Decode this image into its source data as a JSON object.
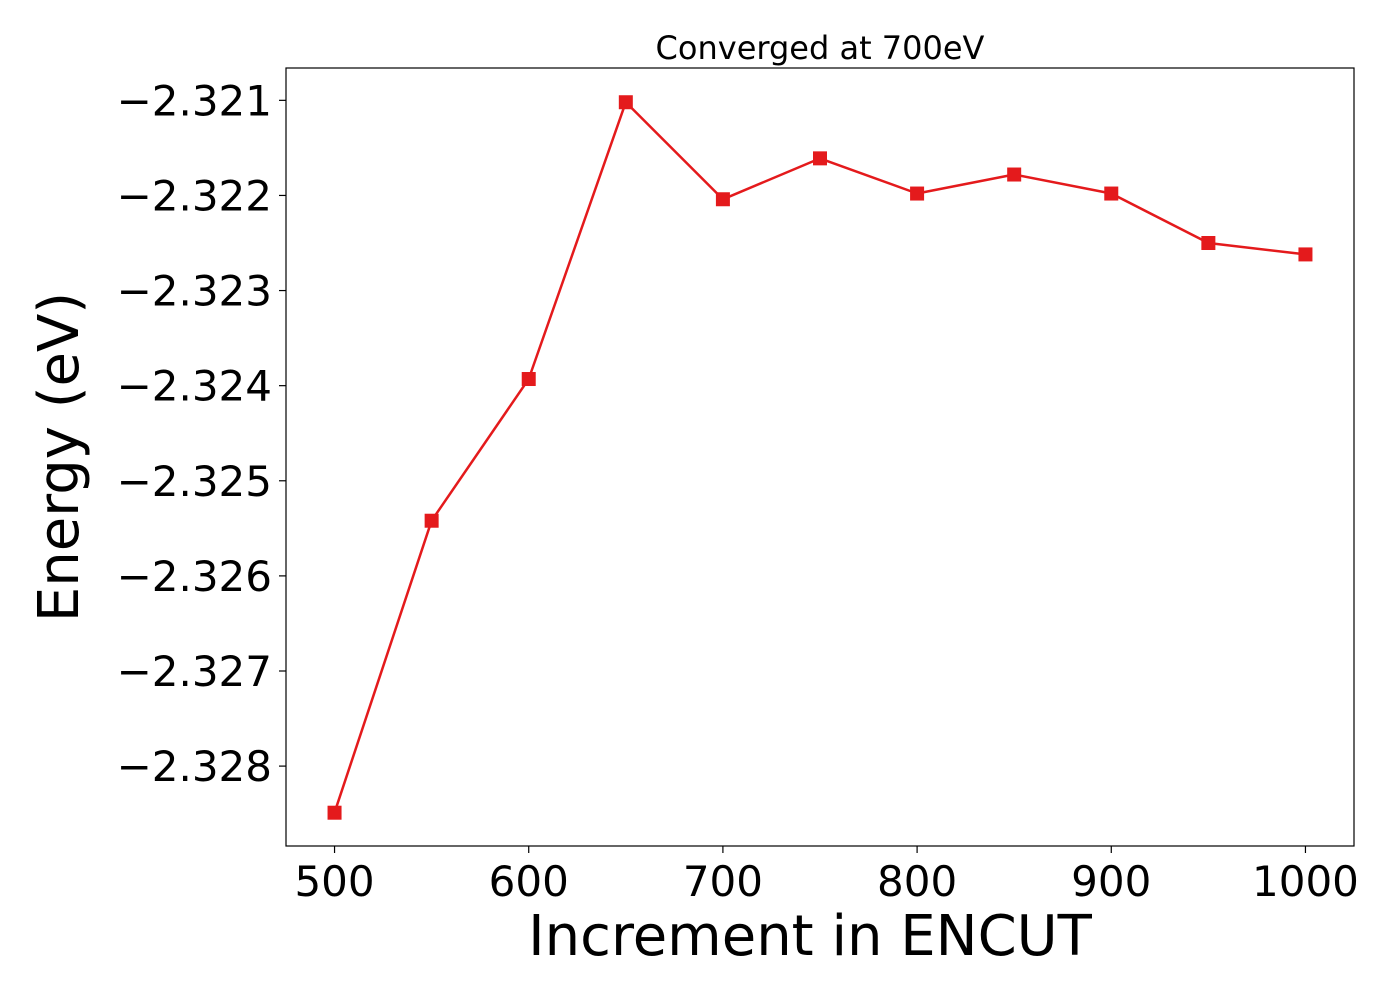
{
  "chart_data": {
    "type": "line",
    "title": "Converged at 700eV",
    "xlabel": "Increment in ENCUT",
    "ylabel": "Energy (eV)",
    "x": [
      500,
      550,
      600,
      650,
      700,
      750,
      800,
      850,
      900,
      950,
      1000
    ],
    "series": [
      {
        "values": [
          -2.32849,
          -2.32542,
          -2.32393,
          -2.32102,
          -2.32204,
          -2.32161,
          -2.32198,
          -2.32178,
          -2.32198,
          -2.3225,
          -2.32262
        ],
        "color": "#e41a1c",
        "marker": "square"
      }
    ],
    "xlim": [
      475,
      1025
    ],
    "ylim": [
      -2.32884,
      -2.32066
    ],
    "xticks": [
      500,
      600,
      700,
      800,
      900,
      1000
    ],
    "yticks": [
      -2.321,
      -2.322,
      -2.323,
      -2.324,
      -2.325,
      -2.326,
      -2.327,
      -2.328
    ],
    "xtick_labels": [
      "500",
      "600",
      "700",
      "800",
      "900",
      "1000"
    ],
    "ytick_labels": [
      "−2.321",
      "−2.322",
      "−2.323",
      "−2.324",
      "−2.325",
      "−2.326",
      "−2.327",
      "−2.328"
    ],
    "grid": false,
    "legend": "none"
  }
}
